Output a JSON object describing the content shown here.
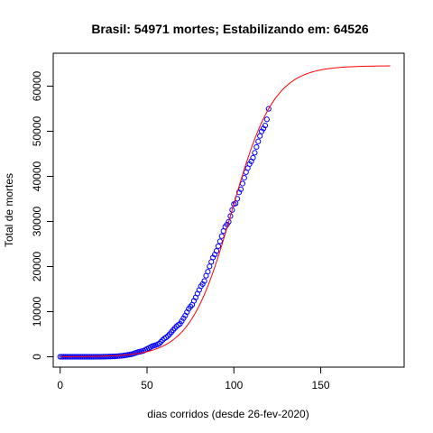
{
  "chart_data": {
    "type": "scatter",
    "title": "Brasil: 54971 mortes; Estabilizando em: 64526",
    "xlabel": "dias corridos (desde 26-fev-2020)",
    "ylabel": "Total de mortes",
    "xlim": [
      -4,
      198
    ],
    "ylim": [
      -2300,
      67300
    ],
    "xticks": [
      0,
      50,
      100,
      150
    ],
    "yticks": [
      0,
      10000,
      20000,
      30000,
      40000,
      50000,
      60000
    ],
    "grid": false,
    "legend": "none",
    "observed_color": "#0000ff",
    "fit_color": "#ff0000",
    "fit_asymptote": 64526,
    "fit_end_day": 190,
    "observed": {
      "name": "",
      "x": [
        0,
        1,
        2,
        3,
        4,
        5,
        6,
        7,
        8,
        9,
        10,
        11,
        12,
        13,
        14,
        15,
        16,
        17,
        18,
        19,
        20,
        21,
        22,
        23,
        24,
        25,
        26,
        27,
        28,
        29,
        30,
        31,
        32,
        33,
        34,
        35,
        36,
        37,
        38,
        39,
        40,
        41,
        42,
        43,
        44,
        45,
        46,
        47,
        48,
        49,
        50,
        51,
        52,
        53,
        54,
        55,
        56,
        57,
        58,
        59,
        60,
        61,
        62,
        63,
        64,
        65,
        66,
        67,
        68,
        69,
        70,
        71,
        72,
        73,
        74,
        75,
        76,
        77,
        78,
        79,
        80,
        81,
        82,
        83,
        84,
        85,
        86,
        87,
        88,
        89,
        90,
        91,
        92,
        93,
        94,
        95,
        96,
        97,
        98,
        99,
        100,
        101,
        102,
        103,
        104,
        105,
        106,
        107,
        108,
        109,
        110,
        111,
        112,
        113,
        114,
        115,
        116,
        117,
        118,
        119,
        120
      ],
      "y": [
        0,
        0,
        0,
        0,
        0,
        0,
        0,
        0,
        0,
        0,
        0,
        0,
        0,
        0,
        0,
        0,
        0,
        0,
        0,
        0,
        0,
        1,
        3,
        6,
        11,
        18,
        25,
        34,
        46,
        57,
        77,
        92,
        114,
        136,
        159,
        201,
        240,
        299,
        359,
        432,
        486,
        553,
        667,
        800,
        941,
        1057,
        1124,
        1223,
        1328,
        1532,
        1736,
        1924,
        2141,
        2354,
        2462,
        2587,
        2741,
        2906,
        3313,
        3704,
        4057,
        4286,
        4603,
        5017,
        5466,
        5901,
        6329,
        6761,
        7051,
        7321,
        7921,
        8536,
        9146,
        9897,
        10627,
        11123,
        11519,
        12400,
        13149,
        13993,
        14817,
        15633,
        16118,
        16792,
        17971,
        18859,
        20047,
        21048,
        22013,
        22666,
        23473,
        24512,
        25598,
        26754,
        27878,
        28834,
        29314,
        29937,
        31199,
        32548,
        33846,
        34021,
        35026,
        36455,
        37134,
        38406,
        39680,
        40919,
        41828,
        42720,
        43332,
        44118,
        45241,
        46510,
        47748,
        48954,
        49976,
        50617,
        51271,
        52645,
        54971
      ]
    }
  }
}
